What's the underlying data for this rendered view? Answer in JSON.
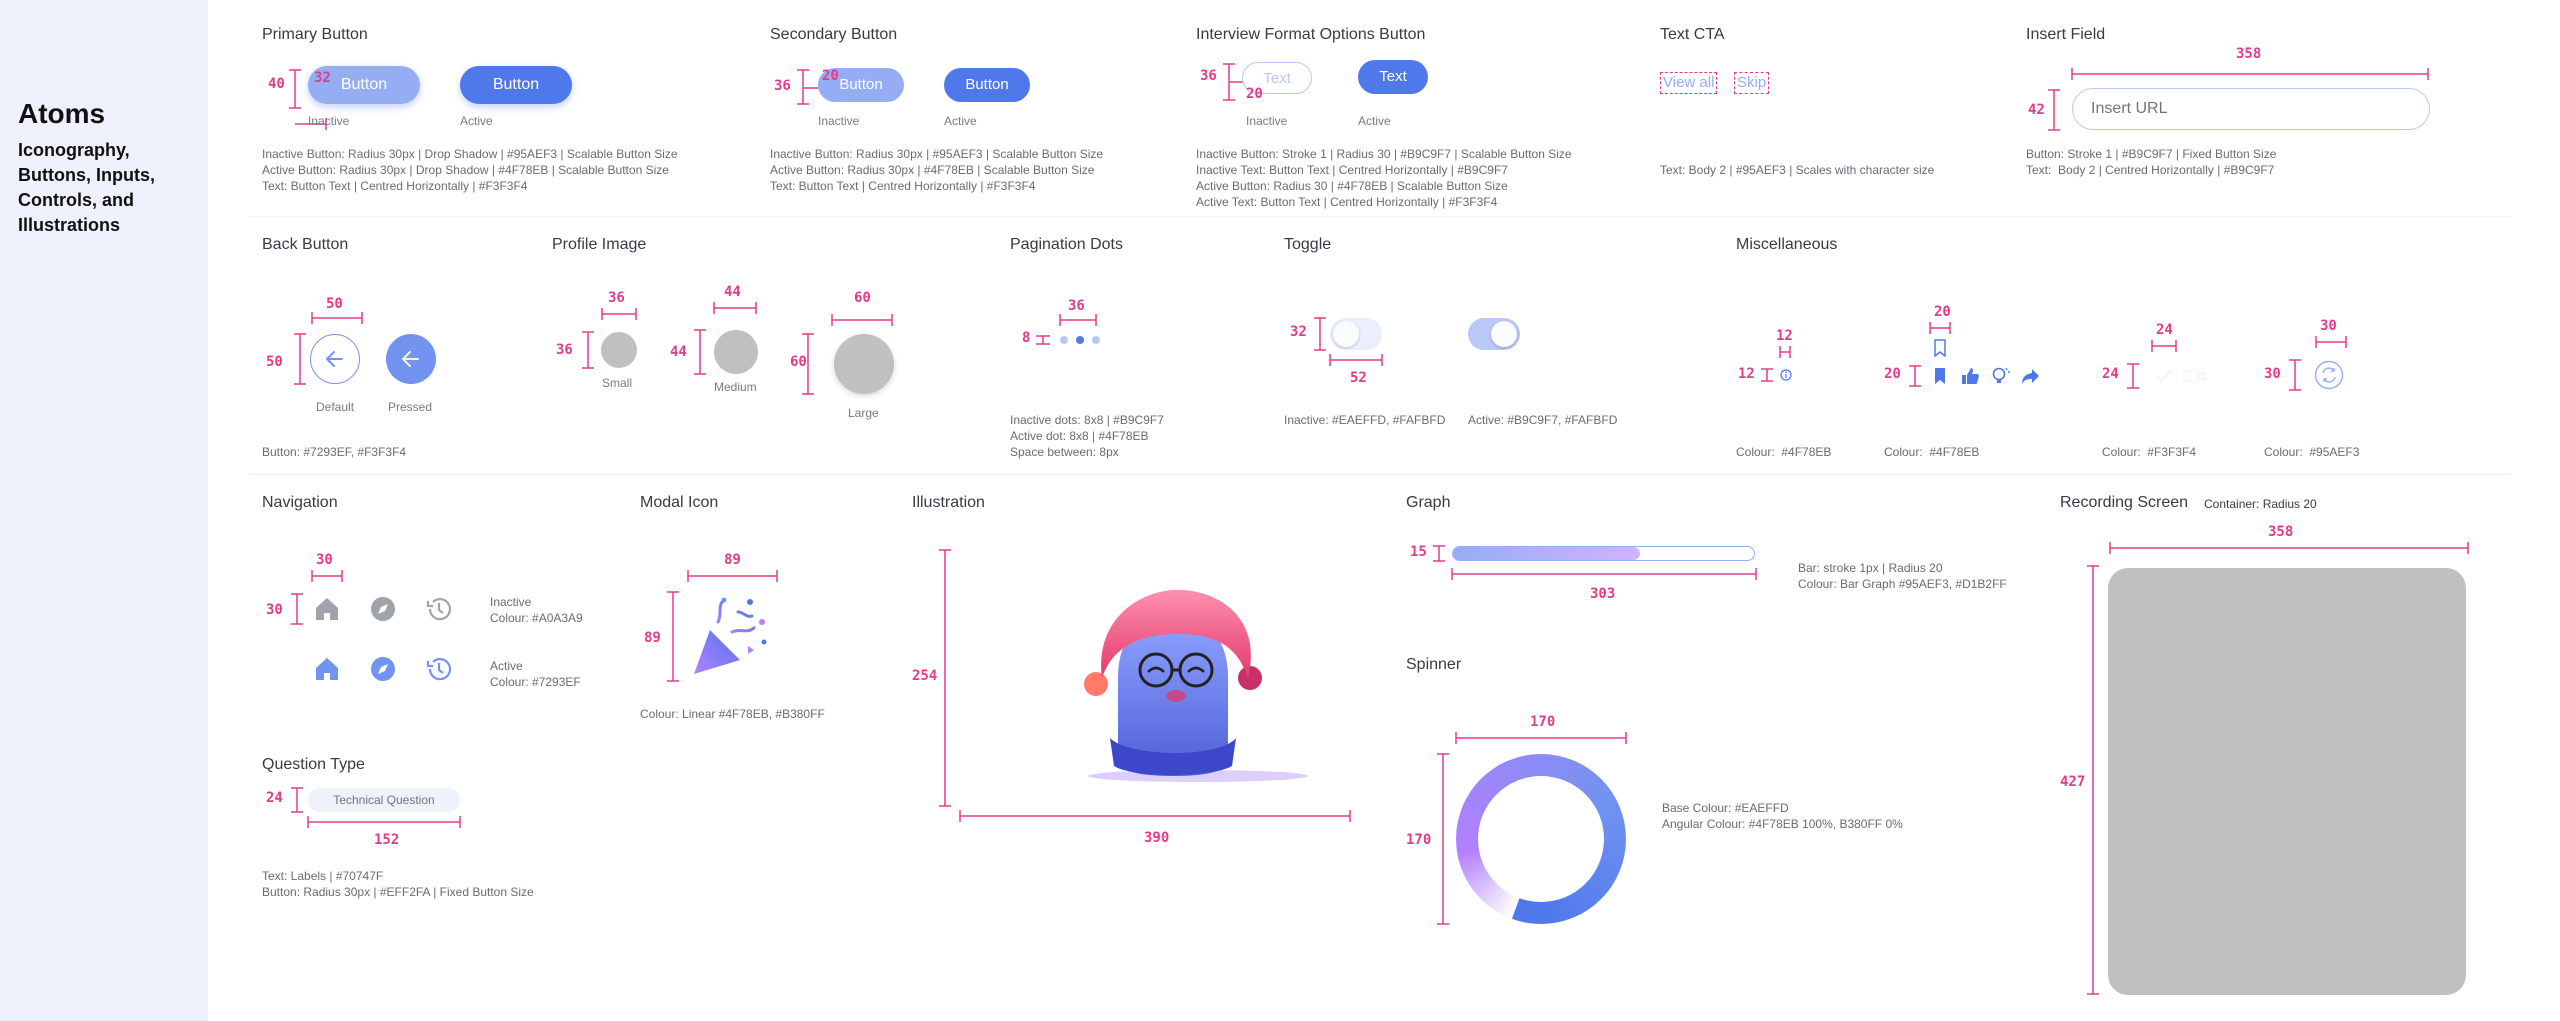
{
  "sidebar": {
    "title": "Atoms",
    "subtitle": "Iconography, Buttons, Inputs, Controls, and Illustrations"
  },
  "colors": {
    "accent": "#4F78EB",
    "inactive": "#95AEF3",
    "magenta": "#E23B8A",
    "toggle_off": "#EAEFFD",
    "grey": "#C0C0C0"
  },
  "primary": {
    "title": "Primary Button",
    "h": "40",
    "w": "32",
    "label": "Button",
    "cap_inactive": "Inactive",
    "cap_active": "Active",
    "notes": [
      "Inactive Button: Radius 30px | Drop Shadow | #95AEF3 | Scalable Button Size",
      "Active Button: Radius 30px | Drop Shadow | #4F78EB | Scalable Button Size",
      "Text: Button Text | Centred Horizontally | #F3F3F4"
    ]
  },
  "secondary": {
    "title": "Secondary Button",
    "h": "36",
    "w": "20",
    "label": "Button",
    "cap_inactive": "Inactive",
    "cap_active": "Active",
    "notes": [
      "Inactive Button: Radius 30px | #95AEF3 | Scalable Button Size",
      "Active Button: Radius 30px | #4F78EB | Scalable Button Size",
      "Text: Button Text | Centred Horizontally | #F3F3F4"
    ]
  },
  "interview": {
    "title": "Interview Format Options Button",
    "h": "36",
    "w": "20",
    "label": "Text",
    "cap_inactive": "Inactive",
    "cap_active": "Active",
    "notes": [
      "Inactive Button: Stroke 1 | Radius 30 | #B9C9F7 | Scalable Button Size",
      "Inactive Text: Button Text | Centred Horizontally | #B9C9F7",
      "Active Button: Radius 30 | #4F78EB | Scalable Button Size",
      "Active Text: Button Text | Centred Horizontally | #F3F3F4"
    ]
  },
  "text_cta": {
    "title": "Text CTA",
    "view_all": "View all",
    "skip": "Skip",
    "note": "Text: Body 2 | #95AEF3 | Scales with character size"
  },
  "insert": {
    "title": "Insert Field",
    "w": "358",
    "h": "42",
    "placeholder": "Insert URL",
    "notes": [
      "Button: Stroke 1 | #B9C9F7 | Fixed Button Size",
      "Text:  Body 2 | Centred Horizontally | #B9C9F7"
    ]
  },
  "back": {
    "title": "Back Button",
    "w": "50",
    "h": "50",
    "cap_default": "Default",
    "cap_pressed": "Pressed",
    "note": "Button: #7293EF, #F3F3F4"
  },
  "profile": {
    "title": "Profile Image",
    "sizes": [
      {
        "label": "Small",
        "n": "36"
      },
      {
        "label": "Medium",
        "n": "44"
      },
      {
        "label": "Large",
        "n": "60"
      }
    ]
  },
  "pagination": {
    "title": "Pagination Dots",
    "w": "36",
    "h": "8",
    "notes": [
      "Inactive dots: 8x8 | #B9C9F7",
      "Active dot: 8x8 | #4F78EB",
      "Space between: 8px"
    ]
  },
  "toggle": {
    "title": "Toggle",
    "h": "32",
    "w": "52",
    "note_inactive": "Inactive: #EAEFFD, #FAFBFD",
    "note_active": "Active: #B9C9F7, #FAFBFD"
  },
  "misc": {
    "title": "Miscellaneous",
    "items": [
      {
        "w": "12",
        "h": "12",
        "colour": "Colour:  #4F78EB"
      },
      {
        "w": "20",
        "h": "20",
        "colour": "Colour:  #4F78EB"
      },
      {
        "w": "24",
        "h": "24",
        "colour": "Colour:  #F3F3F4"
      },
      {
        "w": "30",
        "h": "30",
        "colour": "Colour:  #95AEF3"
      }
    ]
  },
  "navigation": {
    "title": "Navigation",
    "w": "30",
    "h": "30",
    "inactive": "Inactive",
    "inactive_colour": "Colour: #A0A3A9",
    "active": "Active",
    "active_colour": "Colour: #7293EF"
  },
  "question": {
    "title": "Question Type",
    "h": "24",
    "w": "152",
    "chip": "Technical Question",
    "notes": [
      "Text: Labels | #70747F",
      "Button: Radius 30px | #EFF2FA | Fixed Button Size"
    ]
  },
  "modal": {
    "title": "Modal Icon",
    "w": "89",
    "h": "89",
    "note": "Colour: Linear #4F78EB, #B380FF"
  },
  "illustration": {
    "title": "Illustration",
    "h": "254",
    "w": "390"
  },
  "graph": {
    "title": "Graph",
    "h": "15",
    "w": "303",
    "progress": 0.62,
    "notes": [
      "Bar: stroke 1px | Radius 20",
      "Colour: Bar Graph #95AEF3, #D1B2FF"
    ]
  },
  "spinner": {
    "title": "Spinner",
    "w": "170",
    "h": "170",
    "notes": [
      "Base Colour: #EAEFFD",
      "Angular Colour: #4F78EB 100%, B380FF 0%"
    ]
  },
  "recording": {
    "title": "Recording Screen",
    "container": "Container: Radius 20",
    "w": "358",
    "h": "427"
  }
}
